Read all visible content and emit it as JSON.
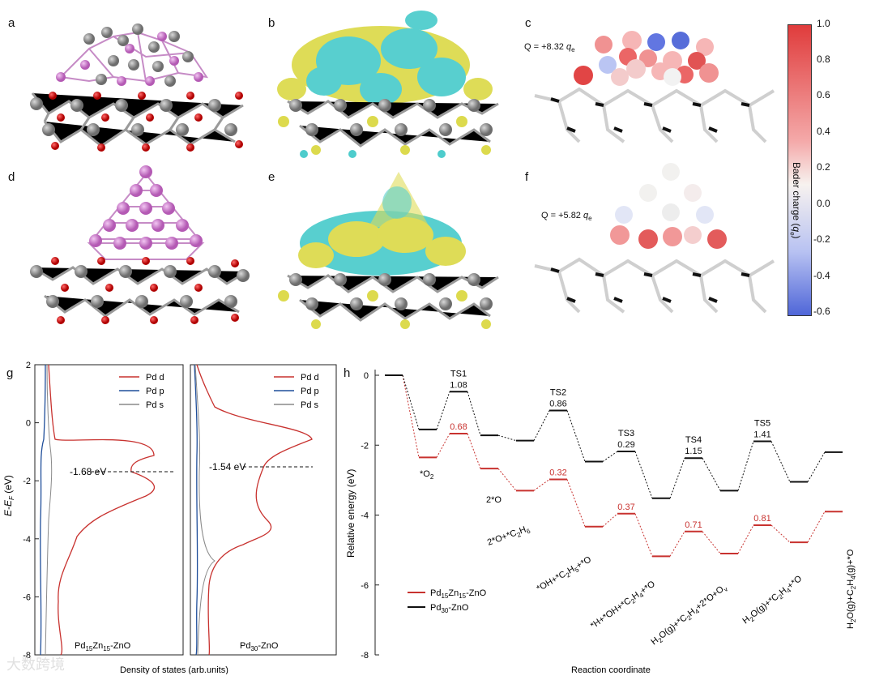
{
  "panels": {
    "a": "a",
    "b": "b",
    "c": "c",
    "d": "d",
    "e": "e",
    "f": "f",
    "g": "g",
    "h": "h"
  },
  "panel_c": {
    "q_prefix": "Q = +8.32 ",
    "q_unit": "q",
    "q_sub": "e"
  },
  "panel_f": {
    "q_prefix": "Q = +5.82 ",
    "q_unit": "q",
    "q_sub": "e"
  },
  "colorbar": {
    "label": "Bader charge (",
    "label_unit": "q",
    "label_sub": "e",
    "label_close": ")",
    "ticks": [
      "1.0",
      "0.8",
      "0.6",
      "0.4",
      "0.2",
      "0.0",
      "-0.2",
      "-0.4",
      "-0.6"
    ],
    "color_top": "#e03c3c",
    "color_mid": "#f7f2ef",
    "color_bottom": "#4f66d8"
  },
  "panel_g": {
    "ylabel": "E-E",
    "ylabel_sub": "F",
    "ylabel_unit": " (eV)",
    "xlabel": "Density of states (arb.units)",
    "yticks": [
      "2",
      "0",
      "-2",
      "-4",
      "-6",
      "-8"
    ],
    "left": {
      "name": "Pd",
      "name_sub1": "15",
      "name_mid": "Zn",
      "name_sub2": "15",
      "name_end": "-ZnO",
      "dband": "-1.68 eV"
    },
    "right": {
      "name": "Pd",
      "name_sub1": "30",
      "name_end": "-ZnO",
      "dband": "-1.54 eV"
    },
    "legend": [
      "Pd d",
      "Pd p",
      "Pd s"
    ],
    "colors": {
      "d": "#c8322f",
      "p": "#1f4e9a",
      "s": "#8a8a8a"
    }
  },
  "chart_data": {
    "type": "line",
    "ylabel": "Relative energy (eV)",
    "xlabel": "Reaction coordinate",
    "ylim": [
      -8,
      0
    ],
    "yticks": [
      "0",
      "-2",
      "-4",
      "-6",
      "-8"
    ],
    "series": [
      {
        "name": "Pd15Zn15-ZnO",
        "color": "#c8322f",
        "levels": [
          0,
          -2.35,
          -1.67,
          -2.67,
          -3.3,
          -2.98,
          -4.33,
          -3.96,
          -5.18,
          -4.47,
          -5.1,
          -4.29,
          -4.78,
          -3.9
        ],
        "barriers": [
          "0.68",
          "0.32",
          "0.37",
          "0.71",
          "0.81"
        ]
      },
      {
        "name": "Pd30-ZnO",
        "color": "#111111",
        "levels": [
          0,
          -1.55,
          -0.47,
          -1.72,
          -1.87,
          -1.01,
          -2.47,
          -2.18,
          -3.52,
          -2.37,
          -3.3,
          -1.89,
          -3.05,
          -2.2
        ],
        "barriers": [
          "1.08",
          "0.86",
          "0.29",
          "1.15",
          "1.41"
        ]
      }
    ],
    "ts_labels": [
      "TS1",
      "TS2",
      "TS3",
      "TS4",
      "TS5"
    ],
    "state_labels": [
      "*O",
      "2*O",
      "2*O+*C",
      "*OH+*C",
      "*H+*OH+*C",
      "H",
      "H",
      "H"
    ],
    "legend": [
      "Pd15Zn15-ZnO",
      "Pd30-ZnO"
    ]
  },
  "watermark": "大数跨境"
}
